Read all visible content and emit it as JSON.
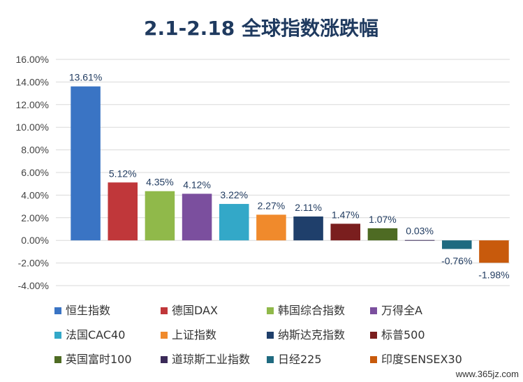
{
  "chart_data": {
    "type": "bar",
    "title": "2.1-2.18 全球指数涨跌幅",
    "ylim": [
      -4,
      16
    ],
    "ytick_step": 2,
    "y_ticks": [
      "16.00%",
      "14.00%",
      "12.00%",
      "10.00%",
      "8.00%",
      "6.00%",
      "4.00%",
      "2.00%",
      "0.00%",
      "-2.00%",
      "-4.00%"
    ],
    "grid": "horizontal",
    "legend_position": "bottom",
    "categories": [
      "恒生指数",
      "德国DAX",
      "韩国综合指数",
      "万得全A",
      "法国CAC40",
      "上证指数",
      "纳斯达克指数",
      "标普500",
      "英国富时100",
      "道琼斯工业指数",
      "日经225",
      "印度SENSEX30"
    ],
    "values": [
      13.61,
      5.12,
      4.35,
      4.12,
      3.22,
      2.27,
      2.11,
      1.47,
      1.07,
      0.03,
      -0.76,
      -1.98
    ],
    "data_labels": [
      "13.61%",
      "5.12%",
      "4.35%",
      "4.12%",
      "3.22%",
      "2.27%",
      "2.11%",
      "1.47%",
      "1.07%",
      "0.03%",
      "-0.76%",
      "-1.98%"
    ],
    "colors": [
      "#3a74c4",
      "#c0373a",
      "#90b94a",
      "#7b4f9e",
      "#33a8c8",
      "#f08a2c",
      "#1f3f6b",
      "#7a1e1e",
      "#4e6b23",
      "#3b2a58",
      "#1f6a80",
      "#c85a0c"
    ]
  },
  "watermark": "www.365jz.com"
}
